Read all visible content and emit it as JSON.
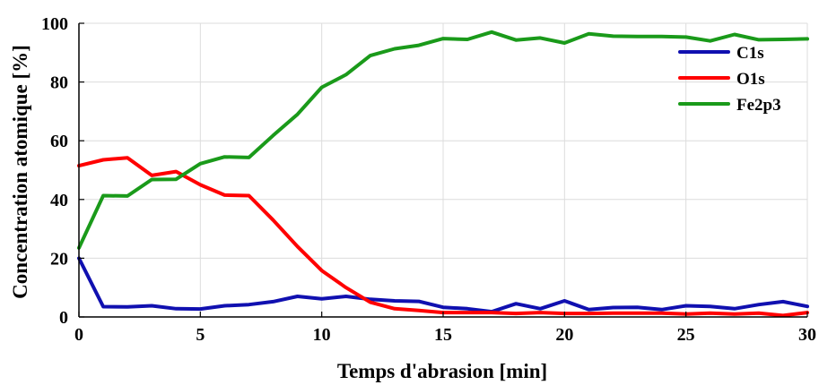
{
  "chart_data": {
    "type": "line",
    "title": "",
    "xlabel": "Temps d'abrasion [min]",
    "ylabel": "Concentration atomique [%]",
    "xlim": [
      0,
      30
    ],
    "ylim": [
      0,
      100
    ],
    "xticks": [
      0,
      5,
      10,
      15,
      20,
      25,
      30
    ],
    "yticks": [
      0,
      20,
      40,
      60,
      80,
      100
    ],
    "grid": true,
    "legend_position": "top-right",
    "x": [
      0,
      1,
      2,
      3,
      4,
      5,
      6,
      7,
      8,
      9,
      10,
      11,
      12,
      13,
      14,
      15,
      16,
      17,
      18,
      19,
      20,
      21,
      22,
      23,
      24,
      25,
      26,
      27,
      28,
      29,
      30
    ],
    "series": [
      {
        "name": "C1s",
        "color": "#1010b0",
        "values": [
          20,
          3.5,
          3.4,
          3.8,
          2.8,
          2.7,
          3.8,
          4.2,
          5.2,
          7.0,
          6.2,
          7.0,
          6.0,
          5.5,
          5.3,
          3.3,
          2.8,
          1.8,
          4.5,
          2.8,
          5.5,
          2.5,
          3.2,
          3.3,
          2.5,
          3.8,
          3.6,
          2.8,
          4.2,
          5.2,
          3.6
        ]
      },
      {
        "name": "O1s",
        "color": "#ff0000",
        "values": [
          51.5,
          53.5,
          54.2,
          48.2,
          49.5,
          45.0,
          41.5,
          41.3,
          33.0,
          24.0,
          15.8,
          10.0,
          5.0,
          2.8,
          2.2,
          1.5,
          1.5,
          1.5,
          1.2,
          1.5,
          1.2,
          1.2,
          1.3,
          1.3,
          1.3,
          1.0,
          1.3,
          1.0,
          1.3,
          0.5,
          1.5
        ]
      },
      {
        "name": "Fe2p3",
        "color": "#1a9a1a",
        "values": [
          23.5,
          41.3,
          41.2,
          46.8,
          46.9,
          52.2,
          54.5,
          54.3,
          61.8,
          69.0,
          78.2,
          82.5,
          89.0,
          91.3,
          92.5,
          94.8,
          94.5,
          97.0,
          94.3,
          95.0,
          93.3,
          96.4,
          95.6,
          95.5,
          95.5,
          95.3,
          94.0,
          96.2,
          94.4,
          94.5,
          94.7
        ]
      }
    ]
  }
}
